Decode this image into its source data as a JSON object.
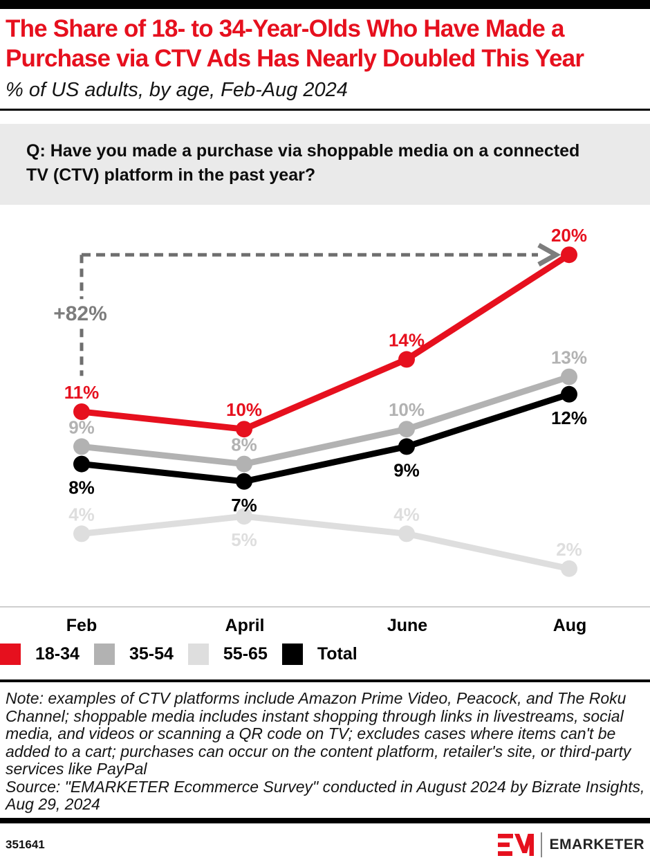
{
  "header": {
    "title_line1": "The Share of 18- to 34-Year-Olds Who Have Made a",
    "title_line2": "Purchase via CTV Ads Has Nearly Doubled This Year",
    "subtitle": "% of US adults, by age, Feb-Aug 2024"
  },
  "question": {
    "line1": "Q: Have you made a purchase via shoppable media on a connected",
    "line2": "TV (CTV) platform in the past year?"
  },
  "chart_data": {
    "type": "line",
    "categories": [
      "Feb",
      "April",
      "June",
      "Aug"
    ],
    "series": [
      {
        "name": "18-34",
        "color": "#e6101e",
        "values": [
          11,
          10,
          14,
          20
        ],
        "label_sides": [
          "above",
          "above",
          "above",
          "above"
        ]
      },
      {
        "name": "35-54",
        "color": "#b2b2b2",
        "values": [
          9,
          8,
          10,
          13
        ],
        "label_sides": [
          "above",
          "above",
          "above",
          "above"
        ]
      },
      {
        "name": "55-65",
        "color": "#dedede",
        "values": [
          4,
          5,
          4,
          2
        ],
        "label_sides": [
          "above",
          "below",
          "above",
          "above"
        ]
      },
      {
        "name": "Total",
        "color": "#000000",
        "values": [
          8,
          7,
          9,
          12
        ],
        "label_sides": [
          "below",
          "below",
          "below",
          "below"
        ]
      }
    ],
    "annotation": {
      "text": "+82%",
      "from_category": "Feb",
      "to_category": "Aug",
      "series": "18-34"
    },
    "value_suffix": "%",
    "ylim": [
      0,
      22
    ],
    "grid": false,
    "legend_position": "bottom"
  },
  "notes": {
    "note": "Note: examples of CTV platforms include Amazon Prime Video, Peacock, and The Roku Channel; shoppable media includes instant shopping through links in livestreams, social media, and videos or scanning a QR code on TV; excludes cases where items can't be added to a cart; purchases can occur on the content platform, retailer's site, or third-party services like PayPal",
    "source": "Source: \"EMARKETER Ecommerce Survey\" conducted in August 2024 by Bizrate Insights, Aug 29, 2024"
  },
  "footer": {
    "chart_id": "351641",
    "brand": "EMARKETER"
  }
}
